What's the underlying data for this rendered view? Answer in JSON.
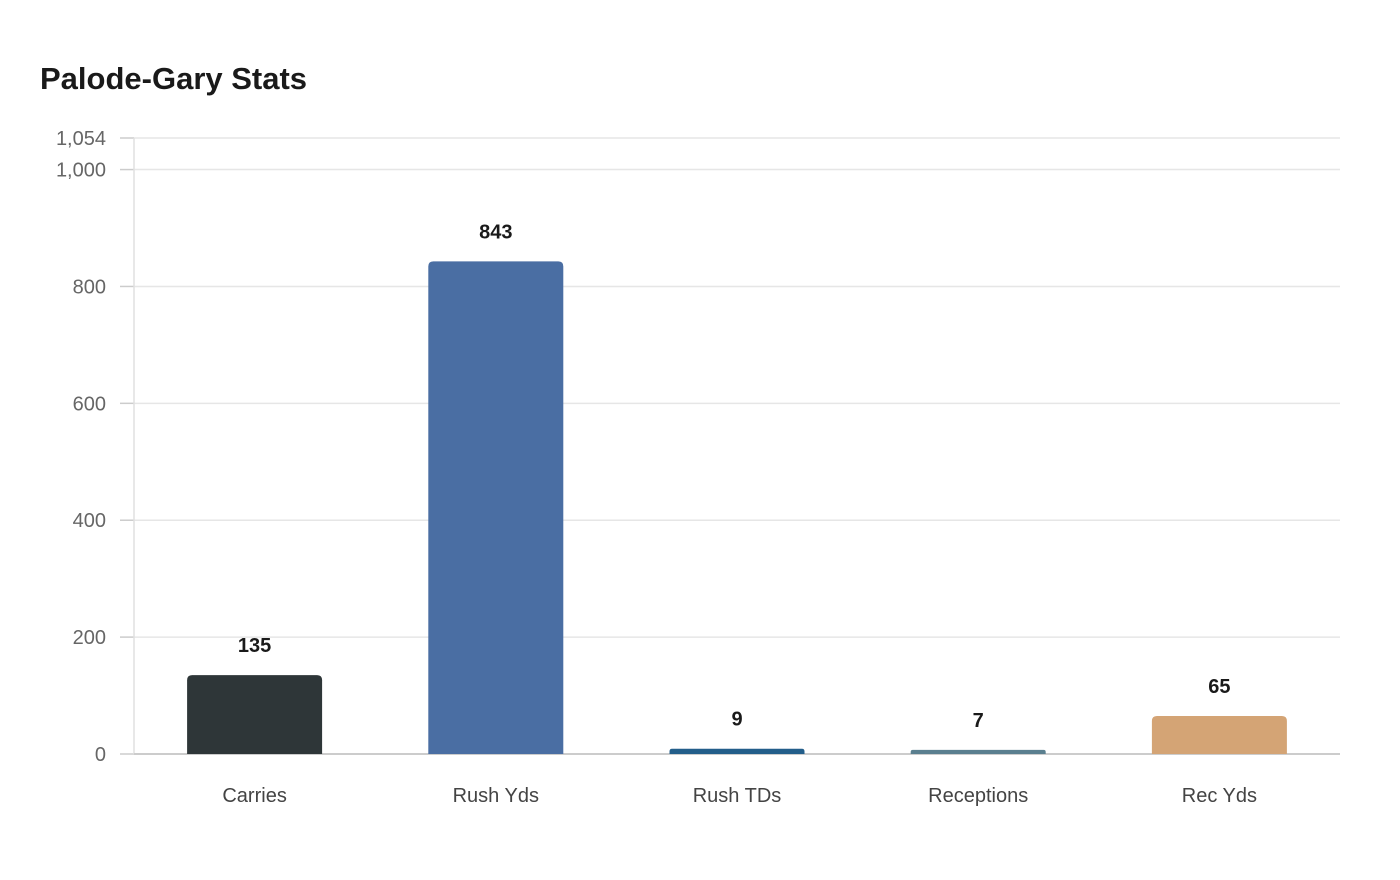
{
  "chart_data": {
    "type": "bar",
    "title": "Palode-Gary Stats",
    "xlabel": "",
    "ylabel": "",
    "categories": [
      "Carries",
      "Rush Yds",
      "Rush TDs",
      "Receptions",
      "Rec Yds"
    ],
    "values": [
      135,
      843,
      9,
      7,
      65
    ],
    "colors": [
      "#2e3638",
      "#4a6ea3",
      "#235e8a",
      "#5a7f8f",
      "#d4a475"
    ],
    "ylim": [
      0,
      1054
    ],
    "yticks": [
      0,
      200,
      400,
      600,
      800,
      1000,
      1054
    ],
    "ytick_labels": [
      "0",
      "200",
      "400",
      "600",
      "800",
      "1,000",
      "1,054"
    ],
    "grid": true,
    "legend": "none"
  }
}
